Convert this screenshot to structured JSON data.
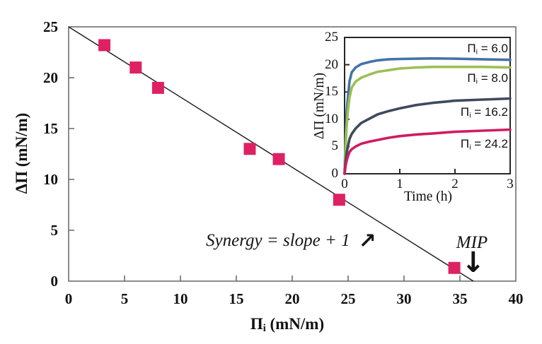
{
  "colors": {
    "background": "#ffffff",
    "axis_frame_main": "#6e6e6e",
    "axis_frame_inset": "#262626",
    "fit_line": "#1c1c1c",
    "marker_pink": "#df2163",
    "series_blue": "#4472a8",
    "series_green": "#9cbf53",
    "series_dark": "#3e4a5c",
    "series_pink": "#cf1c5f"
  },
  "chart_data": [
    {
      "id": "main",
      "type": "scatter",
      "title": "",
      "xlabel": {
        "symbol": "Π",
        "sub": "i",
        "unit": " (mN/m)"
      },
      "ylabel": "ΔΠ (mN/m)",
      "xlim": [
        0,
        40
      ],
      "ylim": [
        0,
        25
      ],
      "x_ticks": [
        "0",
        "5",
        "10",
        "15",
        "20",
        "25",
        "30",
        "35",
        "40"
      ],
      "x_tick_values": [
        0,
        5,
        10,
        15,
        20,
        25,
        30,
        35,
        40
      ],
      "y_ticks": [
        "0",
        "5",
        "10",
        "15",
        "20",
        "25"
      ],
      "y_tick_values": [
        0,
        5,
        10,
        15,
        20,
        25
      ],
      "grid": false,
      "marker": "square",
      "marker_color": "#df2163",
      "points": [
        [
          3.2,
          23.2
        ],
        [
          6.0,
          21.0
        ],
        [
          8.0,
          19.0
        ],
        [
          16.2,
          13.0
        ],
        [
          18.8,
          12.0
        ],
        [
          24.2,
          8.0
        ],
        [
          34.5,
          1.3
        ]
      ],
      "fit_line": {
        "x1": 0,
        "y1": 25,
        "x2": 36.2,
        "y2": 0,
        "color": "#1c1c1c"
      },
      "annotations": {
        "synergy_text": "Synergy = slope + 1",
        "synergy_arrow": "↗",
        "mip_text": "MIP",
        "mip_arrow": "↓"
      }
    },
    {
      "id": "inset",
      "type": "line",
      "title": "",
      "xlabel": "Time (h)",
      "ylabel": "ΔΠ (mN/m)",
      "xlim": [
        0,
        3
      ],
      "ylim": [
        0,
        25
      ],
      "x_ticks": [
        "0",
        "1",
        "2",
        "3"
      ],
      "x_tick_values": [
        0,
        1,
        2,
        3
      ],
      "y_ticks": [
        "0",
        "5",
        "10",
        "15",
        "20",
        "25"
      ],
      "y_tick_values": [
        0,
        5,
        10,
        15,
        20,
        25
      ],
      "grid": false,
      "legend_position": "right-inline",
      "series": [
        {
          "name": "Pi_i = 6.0",
          "initial_pressure": 6.0,
          "label": {
            "symbol": "Π",
            "sub": "i",
            "text": " = 6.0"
          },
          "color": "#4472a8",
          "points": [
            [
              0,
              0
            ],
            [
              0.01,
              4
            ],
            [
              0.02,
              7
            ],
            [
              0.04,
              11.5
            ],
            [
              0.06,
              14
            ],
            [
              0.09,
              17
            ],
            [
              0.13,
              18.6
            ],
            [
              0.2,
              19.5
            ],
            [
              0.3,
              20.1
            ],
            [
              0.45,
              20.5
            ],
            [
              0.6,
              20.8
            ],
            [
              0.8,
              21.0
            ],
            [
              1.0,
              21.05
            ],
            [
              1.3,
              21.1
            ],
            [
              1.6,
              21.15
            ],
            [
              2.0,
              21.1
            ],
            [
              2.5,
              21.0
            ],
            [
              3.0,
              20.9
            ]
          ]
        },
        {
          "name": "Pi_i = 8.0",
          "initial_pressure": 8.0,
          "label": {
            "symbol": "Π",
            "sub": "i",
            "text": " = 8.0"
          },
          "color": "#9cbf53",
          "points": [
            [
              0,
              0
            ],
            [
              0.01,
              3
            ],
            [
              0.02,
              5.5
            ],
            [
              0.04,
              9
            ],
            [
              0.06,
              11.5
            ],
            [
              0.09,
              14
            ],
            [
              0.13,
              15.8
            ],
            [
              0.2,
              16.9
            ],
            [
              0.3,
              17.6
            ],
            [
              0.45,
              18.2
            ],
            [
              0.6,
              18.7
            ],
            [
              0.8,
              19.0
            ],
            [
              1.0,
              19.3
            ],
            [
              1.3,
              19.5
            ],
            [
              1.6,
              19.6
            ],
            [
              2.0,
              19.6
            ],
            [
              2.5,
              19.6
            ],
            [
              3.0,
              19.5
            ]
          ]
        },
        {
          "name": "Pi_i = 16.2",
          "initial_pressure": 16.2,
          "label": {
            "symbol": "Π",
            "sub": "i",
            "text": " = 16.2"
          },
          "color": "#3e4a5c",
          "points": [
            [
              0,
              0
            ],
            [
              0.01,
              1.5
            ],
            [
              0.02,
              2.5
            ],
            [
              0.04,
              4
            ],
            [
              0.06,
              5
            ],
            [
              0.09,
              6.4
            ],
            [
              0.13,
              7.3
            ],
            [
              0.2,
              8.3
            ],
            [
              0.3,
              9.3
            ],
            [
              0.45,
              10.1
            ],
            [
              0.6,
              10.9
            ],
            [
              0.8,
              11.5
            ],
            [
              1.0,
              12.0
            ],
            [
              1.3,
              12.6
            ],
            [
              1.6,
              13.0
            ],
            [
              2.0,
              13.4
            ],
            [
              2.5,
              13.6
            ],
            [
              3.0,
              13.8
            ]
          ]
        },
        {
          "name": "Pi_i = 24.2",
          "initial_pressure": 24.2,
          "label": {
            "symbol": "Π",
            "sub": "i",
            "text": " = 24.2"
          },
          "color": "#cf1c5f",
          "points": [
            [
              0,
              0
            ],
            [
              0.01,
              0.8
            ],
            [
              0.02,
              1.6
            ],
            [
              0.04,
              2.5
            ],
            [
              0.06,
              3.2
            ],
            [
              0.09,
              4.0
            ],
            [
              0.13,
              4.5
            ],
            [
              0.2,
              5.0
            ],
            [
              0.3,
              5.5
            ],
            [
              0.45,
              5.9
            ],
            [
              0.6,
              6.2
            ],
            [
              0.8,
              6.6
            ],
            [
              1.0,
              6.9
            ],
            [
              1.3,
              7.2
            ],
            [
              1.6,
              7.4
            ],
            [
              2.0,
              7.7
            ],
            [
              2.5,
              7.9
            ],
            [
              3.0,
              8.1
            ]
          ]
        }
      ]
    }
  ]
}
